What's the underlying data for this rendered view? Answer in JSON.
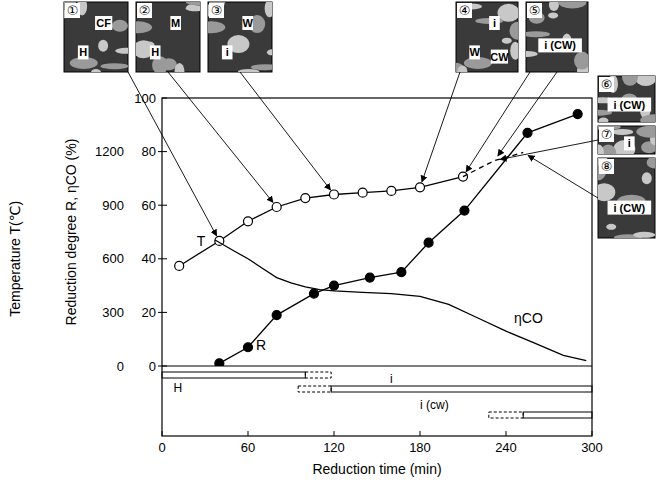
{
  "chart_data": {
    "type": "line",
    "x_label": "Reduction time (min)",
    "y_label": "Reduction degree R, ηCO (%)",
    "y2_label": "Temperature T(℃)",
    "xlim": [
      0,
      300
    ],
    "xticks": [
      0,
      60,
      120,
      180,
      240,
      300
    ],
    "ylim": [
      0,
      100
    ],
    "yticks": [
      0,
      20,
      40,
      60,
      80,
      100
    ],
    "y2lim": [
      0,
      1500
    ],
    "y2ticks": [
      0,
      300,
      600,
      900,
      1200
    ],
    "grid": false,
    "series": [
      {
        "name": "T",
        "axis": "y2",
        "color": "#000000",
        "marker": "open-circle",
        "line_style": "solid",
        "x": [
          12,
          40,
          60,
          80,
          100,
          120,
          140,
          160,
          180,
          210
        ],
        "values": [
          560,
          700,
          810,
          890,
          940,
          960,
          970,
          980,
          1000,
          1060
        ]
      },
      {
        "axis": "y2",
        "color": "#000000",
        "marker": "none",
        "line_style": "dashed",
        "x": [
          210,
          232,
          252
        ],
        "values": [
          1060,
          1150,
          1195
        ]
      },
      {
        "name": "R",
        "color": "#000000",
        "marker": "filled-circle",
        "line_style": "solid",
        "x": [
          40,
          60,
          80,
          106,
          120,
          145,
          167,
          186,
          211,
          255,
          290
        ],
        "values": [
          1,
          7,
          19,
          27,
          30,
          33,
          35,
          46,
          58,
          87,
          94
        ]
      },
      {
        "name": "ηCO",
        "color": "#000000",
        "marker": "none",
        "line_style": "solid",
        "x": [
          37,
          50,
          60,
          70,
          80,
          90,
          100,
          110,
          120,
          140,
          160,
          180,
          200,
          220,
          240,
          260,
          280,
          296
        ],
        "values": [
          47,
          43,
          40,
          36.5,
          33,
          31,
          29.5,
          28.5,
          28,
          27.5,
          27,
          26,
          23,
          18,
          13,
          8.5,
          4,
          2
        ]
      }
    ],
    "phases": [
      {
        "label": "H",
        "start": 0,
        "end": 100,
        "dashed_end": 118
      },
      {
        "label": "i",
        "dashed_start": 95,
        "start": 118,
        "end": 300
      },
      {
        "label": "i (cw)",
        "dashed_start": 228,
        "start": 252,
        "end": 300
      }
    ],
    "photos": [
      {
        "number": "①",
        "labels": [
          "CF",
          "H"
        ]
      },
      {
        "number": "②",
        "labels": [
          "M",
          "H"
        ]
      },
      {
        "number": "③",
        "labels": [
          "W",
          "i"
        ]
      },
      {
        "number": "④",
        "labels": [
          "i",
          "W",
          "CW"
        ]
      },
      {
        "number": "⑤",
        "labels": [
          "i (CW)"
        ]
      },
      {
        "number": "⑥",
        "labels": [
          "i (CW)"
        ]
      },
      {
        "number": "⑦",
        "labels": [
          "i"
        ]
      },
      {
        "number": "⑧",
        "labels": [
          "i (CW)"
        ]
      }
    ]
  }
}
